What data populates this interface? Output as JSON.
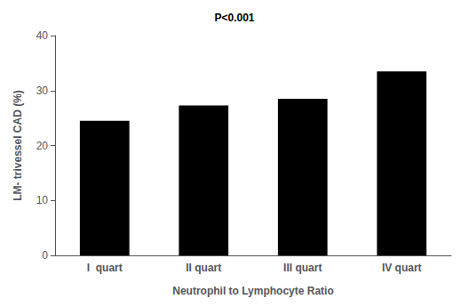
{
  "chart_data": {
    "type": "bar",
    "categories": [
      "I  quart",
      "II quart",
      "III quart",
      "IV quart"
    ],
    "values": [
      24.5,
      27.3,
      28.5,
      33.5
    ],
    "color": "#000000",
    "xlabel": "Neutrophil to Lymphocyte Ratio",
    "ylabel": "LM- trivessel CAD (%)",
    "annotation": "P<0.001",
    "ylim": [
      0,
      40
    ],
    "yticks": [
      0,
      10,
      20,
      30,
      40
    ],
    "grid": false
  }
}
